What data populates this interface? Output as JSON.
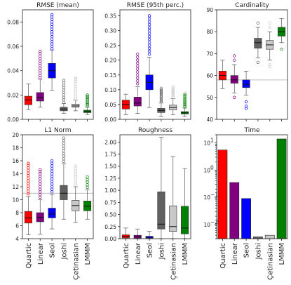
{
  "categories": [
    "Quartic",
    "Linear",
    "Seol",
    "Joshi",
    "Çetinasian",
    "LMMM"
  ],
  "colors": [
    "#ff0000",
    "#800080",
    "#0000ff",
    "#606060",
    "#c8c8c8",
    "#008000"
  ],
  "chart_data": [
    {
      "type": "box",
      "title": "RMSE (mean)",
      "ylim": [
        0,
        0.09
      ],
      "yticks": [
        0,
        0.02,
        0.04,
        0.06,
        0.08
      ],
      "yticklabels": [
        "0.00",
        "0.02",
        "0.04",
        "0.06",
        "0.08"
      ],
      "series": [
        {
          "whislo": 0.008,
          "q1": 0.012,
          "med": 0.016,
          "q3": 0.019,
          "whishi": 0.029,
          "fliers": []
        },
        {
          "whislo": 0.01,
          "q1": 0.015,
          "med": 0.018,
          "q3": 0.022,
          "whishi": 0.033,
          "fliers": [
            0.034,
            0.036,
            0.038,
            0.04,
            0.042,
            0.044,
            0.046,
            0.048,
            0.05,
            0.052,
            0.054,
            0.056
          ]
        },
        {
          "whislo": 0.024,
          "q1": 0.034,
          "med": 0.04,
          "q3": 0.046,
          "whishi": 0.057,
          "fliers": [
            0.058,
            0.06,
            0.062,
            0.064,
            0.066,
            0.068,
            0.07,
            0.072,
            0.074,
            0.076,
            0.078,
            0.08,
            0.082,
            0.084,
            0.086
          ]
        },
        {
          "whislo": 0.005,
          "q1": 0.007,
          "med": 0.0085,
          "q3": 0.01,
          "whishi": 0.013,
          "fliers": [
            0.014,
            0.016,
            0.018,
            0.02,
            0.022,
            0.024,
            0.026,
            0.028,
            0.03,
            0.032
          ]
        },
        {
          "whislo": 0.007,
          "q1": 0.01,
          "med": 0.011,
          "q3": 0.0125,
          "whishi": 0.016,
          "fliers": [
            0.017,
            0.019,
            0.021,
            0.023,
            0.025,
            0.027,
            0.029,
            0.031,
            0.033,
            0.034
          ]
        },
        {
          "whislo": 0.004,
          "q1": 0.0055,
          "med": 0.0065,
          "q3": 0.0075,
          "whishi": 0.01,
          "fliers": [
            0.011,
            0.012,
            0.013,
            0.014,
            0.015,
            0.016,
            0.017,
            0.018,
            0.019,
            0.02
          ]
        }
      ]
    },
    {
      "type": "box",
      "title": "RMSE (95th perc.)",
      "ylim": [
        0,
        0.37
      ],
      "yticks": [
        0,
        0.05,
        0.1,
        0.15,
        0.2,
        0.25,
        0.3,
        0.35
      ],
      "yticklabels": [
        "0.00",
        "0.05",
        "0.10",
        "0.15",
        "0.20",
        "0.25",
        "0.30",
        "0.35"
      ],
      "series": [
        {
          "whislo": 0.015,
          "q1": 0.035,
          "med": 0.05,
          "q3": 0.065,
          "whishi": 0.085,
          "fliers": []
        },
        {
          "whislo": 0.02,
          "q1": 0.045,
          "med": 0.055,
          "q3": 0.075,
          "whishi": 0.11,
          "fliers": [
            0.12,
            0.13,
            0.14,
            0.15,
            0.16,
            0.17,
            0.18,
            0.19,
            0.2,
            0.21,
            0.22
          ]
        },
        {
          "whislo": 0.04,
          "q1": 0.1,
          "med": 0.125,
          "q3": 0.15,
          "whishi": 0.21,
          "fliers": [
            0.22,
            0.23,
            0.24,
            0.25,
            0.26,
            0.27,
            0.28,
            0.29,
            0.3,
            0.31,
            0.32,
            0.33,
            0.34,
            0.35
          ]
        },
        {
          "whislo": 0.01,
          "q1": 0.023,
          "med": 0.03,
          "q3": 0.037,
          "whishi": 0.055,
          "fliers": [
            0.06,
            0.065,
            0.07,
            0.075,
            0.08,
            0.085,
            0.09,
            0.095,
            0.1,
            0.105
          ]
        },
        {
          "whislo": 0.015,
          "q1": 0.032,
          "med": 0.04,
          "q3": 0.048,
          "whishi": 0.07,
          "fliers": [
            0.075,
            0.08,
            0.085,
            0.09,
            0.095,
            0.1,
            0.105,
            0.11
          ]
        },
        {
          "whislo": 0.01,
          "q1": 0.018,
          "med": 0.022,
          "q3": 0.026,
          "whishi": 0.038,
          "fliers": [
            0.042,
            0.046,
            0.05,
            0.054,
            0.058,
            0.062,
            0.066,
            0.07,
            0.075,
            0.08,
            0.085
          ]
        }
      ]
    },
    {
      "type": "box",
      "title": "Cardinality",
      "ylim": [
        40,
        90
      ],
      "yticks": [
        40,
        50,
        60,
        70,
        80,
        90
      ],
      "yticklabels": [
        "40",
        "50",
        "60",
        "70",
        "80",
        "90"
      ],
      "hline": 58,
      "series": [
        {
          "whislo": 54,
          "q1": 58,
          "med": 60,
          "q3": 62,
          "whishi": 67,
          "fliers": []
        },
        {
          "whislo": 52,
          "q1": 56.5,
          "med": 58,
          "q3": 60,
          "whishi": 65,
          "fliers": [
            50,
            67,
            69
          ]
        },
        {
          "whislo": 51,
          "q1": 54.5,
          "med": 56,
          "q3": 58,
          "whishi": 62,
          "fliers": [
            48,
            46,
            45
          ]
        },
        {
          "whislo": 68,
          "q1": 72.5,
          "med": 75,
          "q3": 77,
          "whishi": 82,
          "fliers": [
            66,
            84
          ]
        },
        {
          "whislo": 67,
          "q1": 72,
          "med": 74,
          "q3": 76,
          "whishi": 80,
          "fliers": [
            64,
            65,
            82,
            84
          ]
        },
        {
          "whislo": 75,
          "q1": 78,
          "med": 80,
          "q3": 82,
          "whishi": 86,
          "fliers": [
            72
          ]
        }
      ]
    },
    {
      "type": "box",
      "title": "L1 Norm",
      "ylim": [
        4,
        20
      ],
      "yticks": [
        4,
        6,
        8,
        10,
        12,
        14,
        16,
        18,
        20
      ],
      "yticklabels": [
        "4",
        "6",
        "8",
        "10",
        "12",
        "14",
        "16",
        "18",
        "20"
      ],
      "hline": 11,
      "series": [
        {
          "whislo": 4.6,
          "q1": 6.4,
          "med": 7.2,
          "q3": 8.2,
          "whishi": 10.5,
          "fliers": [
            10.9,
            11.3,
            11.7,
            12.1,
            12.5,
            12.9,
            13.3,
            13.7,
            14.1,
            14.5,
            14.9,
            15.3,
            15.6
          ]
        },
        {
          "whislo": 4.7,
          "q1": 6.6,
          "med": 7.3,
          "q3": 8.0,
          "whishi": 10.0,
          "fliers": [
            10.4,
            10.8,
            11.2,
            11.6,
            12.0,
            12.4,
            12.8,
            13.2,
            13.6,
            14.0,
            14.3,
            14.6
          ]
        },
        {
          "whislo": 5.5,
          "q1": 7.2,
          "med": 7.8,
          "q3": 8.7,
          "whishi": 10.8,
          "fliers": [
            11.2,
            11.6,
            12.0,
            12.4,
            12.8,
            13.2,
            13.6,
            14.0,
            14.4,
            14.8,
            15.2,
            15.6,
            16.0
          ]
        },
        {
          "whislo": 7.0,
          "q1": 10.0,
          "med": 11.0,
          "q3": 12.2,
          "whishi": 15.5,
          "fliers": [
            15.9,
            16.3,
            16.7,
            17.1,
            17.5,
            17.9,
            18.3,
            18.7,
            19.1,
            19.5
          ]
        },
        {
          "whislo": 6.5,
          "q1": 8.3,
          "med": 9.1,
          "q3": 9.9,
          "whishi": 12.0,
          "fliers": [
            12.4,
            12.8,
            13.2,
            13.6,
            14.0,
            14.4,
            14.8,
            15.2
          ]
        },
        {
          "whislo": 7.0,
          "q1": 8.3,
          "med": 9.0,
          "q3": 9.8,
          "whishi": 11.5,
          "fliers": [
            11.9,
            12.3,
            12.7,
            13.1,
            13.5
          ]
        }
      ]
    },
    {
      "type": "box",
      "title": "Roughness",
      "ylim": [
        0,
        2.15
      ],
      "yticks": [
        0,
        0.25,
        0.5,
        0.75,
        1.0,
        1.25,
        1.5,
        1.75,
        2.0
      ],
      "yticklabels": [
        "0.00",
        "0.25",
        "0.50",
        "0.75",
        "1.00",
        "1.25",
        "1.50",
        "1.75",
        "2.00"
      ],
      "series": [
        {
          "whislo": 0.0,
          "q1": 0.015,
          "med": 0.05,
          "q3": 0.08,
          "whishi": 0.22,
          "fliers": []
        },
        {
          "whislo": 0.0,
          "q1": 0.01,
          "med": 0.04,
          "q3": 0.07,
          "whishi": 0.2,
          "fliers": []
        },
        {
          "whislo": 0.0,
          "q1": 0.01,
          "med": 0.03,
          "q3": 0.05,
          "whishi": 0.15,
          "fliers": []
        },
        {
          "whislo": 0.0,
          "q1": 0.2,
          "med": 0.3,
          "q3": 0.97,
          "whishi": 2.1,
          "fliers": []
        },
        {
          "whislo": 0.0,
          "q1": 0.15,
          "med": 0.25,
          "q3": 0.68,
          "whishi": 1.7,
          "fliers": []
        },
        {
          "whislo": 0.0,
          "q1": 0.1,
          "med": 0.22,
          "q3": 0.67,
          "whishi": 1.45,
          "fliers": []
        }
      ]
    },
    {
      "type": "bar",
      "title": "Time",
      "yscale": "log",
      "ylim": [
        0.003,
        20
      ],
      "yticks": [
        0.01,
        0.1,
        1,
        10
      ],
      "yticklabels": [
        "10",
        "10",
        "10",
        "10"
      ],
      "yticksup": [
        "−2",
        "−1",
        "0",
        "1"
      ],
      "values": [
        5.5,
        0.35,
        0.09,
        0.0035,
        0.004,
        14
      ]
    }
  ]
}
